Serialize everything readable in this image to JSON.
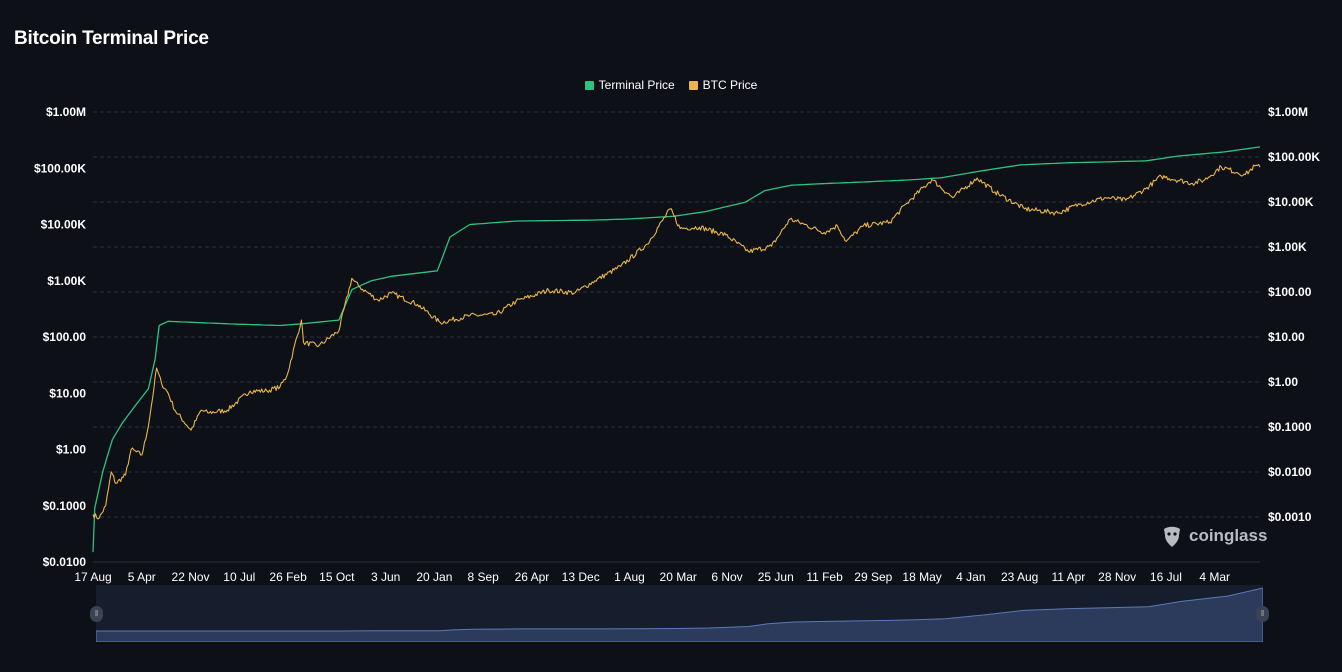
{
  "title": "Bitcoin Terminal Price",
  "legend": [
    {
      "label": "Terminal Price",
      "color": "#2ec27e"
    },
    {
      "label": "BTC Price",
      "color": "#e8b64a"
    }
  ],
  "watermark": {
    "text": "coinglass",
    "icon": "coinglass-logo-icon"
  },
  "navigator": {
    "handle_left_icon": "drag-handle-icon",
    "handle_right_icon": "drag-handle-icon"
  },
  "chart_data": {
    "type": "line",
    "title": "Bitcoin Terminal Price",
    "x_ticks": [
      "17 Aug",
      "5 Apr",
      "22 Nov",
      "10 Jul",
      "26 Feb",
      "15 Oct",
      "3 Jun",
      "20 Jan",
      "8 Sep",
      "26 Apr",
      "13 Dec",
      "1 Aug",
      "20 Mar",
      "6 Nov",
      "25 Jun",
      "11 Feb",
      "29 Sep",
      "18 May",
      "4 Jan",
      "23 Aug",
      "11 Apr",
      "28 Nov",
      "16 Jul",
      "4 Mar"
    ],
    "x_range": [
      "2010-08-17",
      "2025-06-15"
    ],
    "y_left": {
      "scale": "log",
      "range": [
        0.01,
        1000000
      ],
      "ticks": [
        "$0.0100",
        "$0.1000",
        "$1.00",
        "$10.00",
        "$100.00",
        "$1.00K",
        "$10.00K",
        "$100.00K",
        "$1.00M"
      ]
    },
    "y_right": {
      "scale": "log",
      "range": [
        0.0001,
        1000000
      ],
      "ticks": [
        "$0.0010",
        "$0.0100",
        "$0.1000",
        "$1.00",
        "$10.00",
        "$100.00",
        "$1.00K",
        "$10.00K",
        "$100.00K",
        "$1.00M"
      ]
    },
    "grid": true,
    "legend_position": "top-center",
    "series": [
      {
        "name": "Terminal Price",
        "axis": "left",
        "color": "#2ec27e",
        "points": [
          [
            "2010-08-17",
            0.015
          ],
          [
            "2010-08-25",
            0.09
          ],
          [
            "2010-10-01",
            0.4
          ],
          [
            "2010-11-15",
            1.5
          ],
          [
            "2011-01-01",
            3
          ],
          [
            "2011-03-01",
            6
          ],
          [
            "2011-05-01",
            12
          ],
          [
            "2011-06-01",
            40
          ],
          [
            "2011-06-20",
            160
          ],
          [
            "2011-08-01",
            190
          ],
          [
            "2012-06-01",
            170
          ],
          [
            "2013-01-01",
            160
          ],
          [
            "2013-04-01",
            170
          ],
          [
            "2013-10-01",
            200
          ],
          [
            "2013-12-01",
            700
          ],
          [
            "2014-03-01",
            1000
          ],
          [
            "2014-06-01",
            1200
          ],
          [
            "2015-01-01",
            1500
          ],
          [
            "2015-03-01",
            6000
          ],
          [
            "2015-06-01",
            10000
          ],
          [
            "2016-01-01",
            11500
          ],
          [
            "2017-01-01",
            12000
          ],
          [
            "2017-06-01",
            12500
          ],
          [
            "2018-01-01",
            14000
          ],
          [
            "2018-06-01",
            17000
          ],
          [
            "2018-12-01",
            25000
          ],
          [
            "2019-03-01",
            40000
          ],
          [
            "2019-07-01",
            50000
          ],
          [
            "2020-01-01",
            54000
          ],
          [
            "2020-06-01",
            57000
          ],
          [
            "2021-01-01",
            62000
          ],
          [
            "2021-06-01",
            68000
          ],
          [
            "2021-12-01",
            90000
          ],
          [
            "2022-06-01",
            115000
          ],
          [
            "2023-01-01",
            125000
          ],
          [
            "2024-01-01",
            135000
          ],
          [
            "2024-06-01",
            165000
          ],
          [
            "2025-01-01",
            195000
          ],
          [
            "2025-06-15",
            240000
          ]
        ]
      },
      {
        "name": "BTC Price",
        "axis": "left",
        "color": "#e8b64a",
        "points": [
          [
            "2010-08-17",
            0.07
          ],
          [
            "2010-09-15",
            0.06
          ],
          [
            "2010-10-15",
            0.1
          ],
          [
            "2010-11-10",
            0.4
          ],
          [
            "2010-12-01",
            0.25
          ],
          [
            "2011-01-15",
            0.35
          ],
          [
            "2011-02-10",
            1.0
          ],
          [
            "2011-04-01",
            0.8
          ],
          [
            "2011-04-25",
            2
          ],
          [
            "2011-05-20",
            8
          ],
          [
            "2011-06-08",
            28
          ],
          [
            "2011-07-01",
            15
          ],
          [
            "2011-08-01",
            10
          ],
          [
            "2011-09-01",
            5
          ],
          [
            "2011-11-15",
            2.2
          ],
          [
            "2012-01-01",
            5
          ],
          [
            "2012-02-01",
            4.5
          ],
          [
            "2012-05-01",
            5
          ],
          [
            "2012-08-15",
            11
          ],
          [
            "2012-11-01",
            11
          ],
          [
            "2013-01-01",
            13
          ],
          [
            "2013-02-01",
            20
          ],
          [
            "2013-04-10",
            200
          ],
          [
            "2013-04-20",
            80
          ],
          [
            "2013-07-01",
            70
          ],
          [
            "2013-10-01",
            130
          ],
          [
            "2013-11-30",
            1100
          ],
          [
            "2014-01-01",
            800
          ],
          [
            "2014-04-01",
            450
          ],
          [
            "2014-06-01",
            600
          ],
          [
            "2014-10-01",
            380
          ],
          [
            "2015-01-15",
            180
          ],
          [
            "2015-06-01",
            240
          ],
          [
            "2015-10-01",
            250
          ],
          [
            "2016-01-01",
            430
          ],
          [
            "2016-06-01",
            680
          ],
          [
            "2016-10-01",
            610
          ],
          [
            "2017-01-01",
            1000
          ],
          [
            "2017-05-01",
            1800
          ],
          [
            "2017-09-01",
            4500
          ],
          [
            "2017-12-17",
            19000
          ],
          [
            "2018-02-01",
            8500
          ],
          [
            "2018-05-01",
            9000
          ],
          [
            "2018-09-01",
            6500
          ],
          [
            "2018-12-15",
            3300
          ],
          [
            "2019-04-01",
            4100
          ],
          [
            "2019-06-26",
            12500
          ],
          [
            "2019-09-01",
            10000
          ],
          [
            "2019-12-01",
            7200
          ],
          [
            "2020-02-01",
            9500
          ],
          [
            "2020-03-13",
            5000
          ],
          [
            "2020-06-01",
            9500
          ],
          [
            "2020-10-01",
            11000
          ],
          [
            "2020-12-20",
            24000
          ],
          [
            "2021-04-14",
            63000
          ],
          [
            "2021-07-20",
            30000
          ],
          [
            "2021-11-10",
            67000
          ],
          [
            "2022-02-01",
            38000
          ],
          [
            "2022-06-18",
            19000
          ],
          [
            "2022-11-20",
            16000
          ],
          [
            "2023-03-01",
            23000
          ],
          [
            "2023-07-01",
            30000
          ],
          [
            "2023-10-01",
            27000
          ],
          [
            "2024-01-01",
            43000
          ],
          [
            "2024-03-14",
            72000
          ],
          [
            "2024-08-05",
            54000
          ],
          [
            "2024-10-01",
            62000
          ],
          [
            "2024-12-17",
            106000
          ],
          [
            "2025-03-01",
            84000
          ],
          [
            "2025-04-08",
            77000
          ],
          [
            "2025-05-22",
            110000
          ],
          [
            "2025-06-15",
            105000
          ]
        ]
      }
    ]
  }
}
